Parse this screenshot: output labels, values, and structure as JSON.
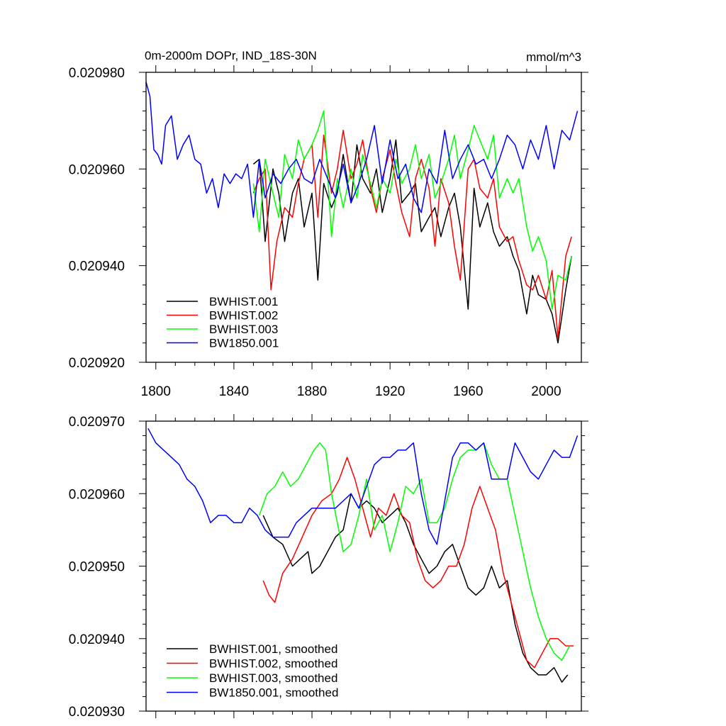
{
  "chart_data": [
    {
      "type": "line",
      "title": "0m-2000m DOPr, IND_18S-30N",
      "units": "mmol/m^3",
      "xlim": [
        1795,
        2018
      ],
      "ylim": [
        0.02092,
        0.02098
      ],
      "x_ticks": [
        1800,
        1840,
        1880,
        1920,
        1960,
        2000
      ],
      "x_tick_labels": [
        "1800",
        "1840",
        "1880",
        "1920",
        "1960",
        "2000"
      ],
      "y_ticks": [
        0.02092,
        0.02094,
        0.02096,
        0.02098
      ],
      "y_tick_labels": [
        "0.020920",
        "0.020940",
        "0.020960",
        "0.020980"
      ],
      "legend_position": "bottom-left",
      "series": [
        {
          "name": "BWHIST.001",
          "color": "#000000",
          "x": [
            1850,
            1853,
            1856,
            1860,
            1863,
            1866,
            1870,
            1873,
            1876,
            1880,
            1883,
            1886,
            1890,
            1893,
            1896,
            1900,
            1903,
            1906,
            1910,
            1913,
            1916,
            1920,
            1923,
            1926,
            1930,
            1933,
            1936,
            1940,
            1943,
            1946,
            1950,
            1953,
            1956,
            1960,
            1963,
            1966,
            1970,
            1973,
            1976,
            1980,
            1983,
            1986,
            1990,
            1993,
            1996,
            2000,
            2003,
            2006,
            2010,
            2013
          ],
          "values": [
            0.020961,
            0.020962,
            0.020945,
            0.02096,
            0.020955,
            0.020945,
            0.020955,
            0.020958,
            0.020948,
            0.020955,
            0.020937,
            0.020957,
            0.020952,
            0.020955,
            0.020963,
            0.020953,
            0.020965,
            0.020958,
            0.020955,
            0.02096,
            0.020951,
            0.020958,
            0.020966,
            0.020953,
            0.020955,
            0.020957,
            0.020947,
            0.02095,
            0.020952,
            0.020946,
            0.020952,
            0.020955,
            0.020948,
            0.020931,
            0.020956,
            0.020948,
            0.020953,
            0.020947,
            0.020944,
            0.020946,
            0.020942,
            0.020939,
            0.02093,
            0.020938,
            0.020934,
            0.020933,
            0.02093,
            0.020924,
            0.020935,
            0.020942
          ]
        },
        {
          "name": "BWHIST.002",
          "color": "#ff0000",
          "x": [
            1850,
            1853,
            1856,
            1859,
            1862,
            1866,
            1870,
            1873,
            1876,
            1880,
            1883,
            1886,
            1890,
            1893,
            1896,
            1900,
            1903,
            1906,
            1910,
            1913,
            1916,
            1920,
            1923,
            1926,
            1930,
            1933,
            1936,
            1940,
            1943,
            1946,
            1950,
            1953,
            1956,
            1960,
            1963,
            1966,
            1970,
            1973,
            1976,
            1980,
            1983,
            1986,
            1990,
            1993,
            1996,
            2000,
            2003,
            2006,
            2010,
            2013
          ],
          "values": [
            0.020955,
            0.020958,
            0.02096,
            0.020935,
            0.020945,
            0.020952,
            0.02095,
            0.020957,
            0.020962,
            0.020965,
            0.02095,
            0.020967,
            0.020955,
            0.02096,
            0.020968,
            0.020958,
            0.020961,
            0.020966,
            0.020956,
            0.020951,
            0.020958,
            0.020964,
            0.020957,
            0.020951,
            0.020946,
            0.020958,
            0.020962,
            0.020956,
            0.020944,
            0.020958,
            0.020953,
            0.020944,
            0.020937,
            0.02096,
            0.020962,
            0.020956,
            0.020954,
            0.020958,
            0.020948,
            0.020945,
            0.020946,
            0.020941,
            0.020936,
            0.020935,
            0.020938,
            0.020933,
            0.020939,
            0.020925,
            0.020942,
            0.020946
          ]
        },
        {
          "name": "BWHIST.003",
          "color": "#00ff00",
          "x": [
            1850,
            1853,
            1856,
            1860,
            1863,
            1866,
            1870,
            1873,
            1876,
            1880,
            1883,
            1886,
            1890,
            1893,
            1896,
            1900,
            1903,
            1906,
            1910,
            1913,
            1916,
            1920,
            1923,
            1926,
            1930,
            1933,
            1936,
            1940,
            1943,
            1946,
            1950,
            1953,
            1956,
            1960,
            1963,
            1966,
            1970,
            1973,
            1976,
            1980,
            1983,
            1986,
            1990,
            1993,
            1996,
            2000,
            2003,
            2006,
            2010,
            2013
          ],
          "values": [
            0.020957,
            0.020947,
            0.020962,
            0.020955,
            0.02095,
            0.020963,
            0.020958,
            0.020966,
            0.020962,
            0.020965,
            0.020968,
            0.020972,
            0.020946,
            0.020958,
            0.020952,
            0.02096,
            0.020954,
            0.020963,
            0.020957,
            0.020952,
            0.020958,
            0.020955,
            0.020962,
            0.020957,
            0.02096,
            0.020965,
            0.020958,
            0.020963,
            0.020954,
            0.020957,
            0.020962,
            0.020967,
            0.020958,
            0.020964,
            0.020969,
            0.020966,
            0.020962,
            0.020967,
            0.020954,
            0.020958,
            0.020955,
            0.020958,
            0.020948,
            0.020943,
            0.020946,
            0.020941,
            0.020931,
            0.020938,
            0.020937,
            0.020942
          ]
        },
        {
          "name": "BW1850.001",
          "color": "#0000ff",
          "x": [
            1795,
            1797,
            1799,
            1801,
            1803,
            1805,
            1808,
            1811,
            1814,
            1817,
            1820,
            1823,
            1826,
            1829,
            1832,
            1835,
            1838,
            1841,
            1844,
            1847,
            1850,
            1853,
            1856,
            1860,
            1864,
            1868,
            1872,
            1876,
            1880,
            1884,
            1888,
            1892,
            1896,
            1900,
            1904,
            1908,
            1912,
            1916,
            1920,
            1924,
            1928,
            1932,
            1936,
            1940,
            1944,
            1948,
            1952,
            1956,
            1960,
            1964,
            1968,
            1972,
            1976,
            1980,
            1984,
            1988,
            1992,
            1996,
            2000,
            2004,
            2008,
            2012,
            2016
          ],
          "values": [
            0.020978,
            0.020975,
            0.020964,
            0.020963,
            0.020961,
            0.020969,
            0.020971,
            0.020962,
            0.020965,
            0.020967,
            0.020962,
            0.020961,
            0.020955,
            0.020958,
            0.020952,
            0.020959,
            0.020957,
            0.020959,
            0.020958,
            0.020961,
            0.02095,
            0.020962,
            0.020954,
            0.020959,
            0.020957,
            0.02096,
            0.020962,
            0.020958,
            0.020957,
            0.020962,
            0.020958,
            0.020954,
            0.020961,
            0.020953,
            0.020957,
            0.020962,
            0.020969,
            0.020957,
            0.020966,
            0.020958,
            0.020961,
            0.020954,
            0.020951,
            0.02096,
            0.020957,
            0.020968,
            0.020958,
            0.020962,
            0.020965,
            0.020961,
            0.020962,
            0.020958,
            0.020962,
            0.020967,
            0.020965,
            0.02096,
            0.020966,
            0.020962,
            0.020969,
            0.02096,
            0.020968,
            0.020966,
            0.020972
          ]
        }
      ]
    },
    {
      "type": "line",
      "title": "",
      "xlim": [
        1795,
        2018
      ],
      "ylim": [
        0.02093,
        0.02097
      ],
      "x_ticks": [
        1800,
        1840,
        1880,
        1920,
        1960,
        2000
      ],
      "y_ticks": [
        0.02093,
        0.02094,
        0.02095,
        0.02096,
        0.02097
      ],
      "y_tick_labels": [
        "0.020930",
        "0.020940",
        "0.020950",
        "0.020960",
        "0.020970"
      ],
      "legend_position": "bottom-left",
      "series": [
        {
          "name": "BWHIST.001, smoothed",
          "color": "#000000",
          "x": [
            1855,
            1860,
            1865,
            1870,
            1874,
            1878,
            1880,
            1884,
            1888,
            1892,
            1896,
            1900,
            1904,
            1908,
            1912,
            1916,
            1920,
            1924,
            1928,
            1932,
            1936,
            1940,
            1944,
            1948,
            1952,
            1956,
            1960,
            1964,
            1968,
            1972,
            1976,
            1980,
            1984,
            1988,
            1992,
            1996,
            2000,
            2004,
            2008,
            2011
          ],
          "values": [
            0.020957,
            0.020954,
            0.020953,
            0.02095,
            0.020951,
            0.020952,
            0.020949,
            0.02095,
            0.020952,
            0.020954,
            0.020955,
            0.02096,
            0.020958,
            0.020959,
            0.020958,
            0.020956,
            0.020957,
            0.020958,
            0.020956,
            0.020953,
            0.020951,
            0.020949,
            0.02095,
            0.020952,
            0.020953,
            0.02095,
            0.020947,
            0.020946,
            0.020947,
            0.02095,
            0.020947,
            0.020948,
            0.020942,
            0.020938,
            0.020936,
            0.020935,
            0.020935,
            0.020936,
            0.020934,
            0.020935
          ]
        },
        {
          "name": "BWHIST.002, smoothed",
          "color": "#ff0000",
          "x": [
            1855,
            1858,
            1861,
            1865,
            1870,
            1875,
            1880,
            1885,
            1890,
            1894,
            1898,
            1902,
            1906,
            1910,
            1914,
            1918,
            1922,
            1926,
            1930,
            1934,
            1938,
            1942,
            1946,
            1950,
            1954,
            1958,
            1962,
            1966,
            1970,
            1974,
            1978,
            1982,
            1986,
            1990,
            1994,
            1998,
            2002,
            2006,
            2010,
            2014
          ],
          "values": [
            0.020948,
            0.020946,
            0.020945,
            0.020949,
            0.020951,
            0.020954,
            0.020957,
            0.020959,
            0.02096,
            0.020962,
            0.020965,
            0.020962,
            0.020958,
            0.020954,
            0.020958,
            0.020957,
            0.02096,
            0.020957,
            0.020956,
            0.020951,
            0.020948,
            0.020947,
            0.020948,
            0.02095,
            0.02095,
            0.020953,
            0.020958,
            0.020961,
            0.020958,
            0.020955,
            0.020949,
            0.020945,
            0.020941,
            0.020937,
            0.020936,
            0.020938,
            0.02094,
            0.02094,
            0.020939,
            0.020939
          ]
        },
        {
          "name": "BWHIST.003, smoothed",
          "color": "#00ff00",
          "x": [
            1853,
            1857,
            1861,
            1865,
            1869,
            1873,
            1877,
            1881,
            1884,
            1887,
            1890,
            1893,
            1896,
            1900,
            1904,
            1908,
            1912,
            1916,
            1920,
            1924,
            1928,
            1932,
            1936,
            1940,
            1944,
            1948,
            1952,
            1956,
            1960,
            1964,
            1968,
            1972,
            1976,
            1980,
            1984,
            1988,
            1992,
            1996,
            2000,
            2004,
            2008,
            2012
          ],
          "values": [
            0.020957,
            0.02096,
            0.020961,
            0.020963,
            0.020961,
            0.020962,
            0.020964,
            0.020966,
            0.020967,
            0.020966,
            0.02096,
            0.020956,
            0.020952,
            0.020953,
            0.020957,
            0.020962,
            0.020955,
            0.020957,
            0.020952,
            0.020956,
            0.020961,
            0.02096,
            0.020962,
            0.020956,
            0.020956,
            0.020958,
            0.020962,
            0.020965,
            0.020966,
            0.020966,
            0.020967,
            0.020964,
            0.020962,
            0.020962,
            0.020957,
            0.020952,
            0.020947,
            0.020943,
            0.02094,
            0.020938,
            0.020937,
            0.020939
          ]
        },
        {
          "name": "BW1850.001, smoothed",
          "color": "#0000ff",
          "x": [
            1796,
            1800,
            1804,
            1808,
            1812,
            1816,
            1820,
            1824,
            1828,
            1832,
            1836,
            1840,
            1844,
            1848,
            1852,
            1856,
            1860,
            1864,
            1868,
            1872,
            1876,
            1880,
            1884,
            1888,
            1892,
            1896,
            1900,
            1904,
            1908,
            1912,
            1916,
            1920,
            1924,
            1928,
            1932,
            1936,
            1940,
            1944,
            1948,
            1952,
            1956,
            1960,
            1964,
            1968,
            1972,
            1976,
            1980,
            1984,
            1988,
            1992,
            1996,
            2000,
            2004,
            2008,
            2012,
            2016
          ],
          "values": [
            0.020969,
            0.020967,
            0.020966,
            0.020965,
            0.020964,
            0.020962,
            0.020961,
            0.020959,
            0.020956,
            0.020957,
            0.020957,
            0.020956,
            0.020956,
            0.020958,
            0.020957,
            0.020955,
            0.020954,
            0.020954,
            0.020954,
            0.020956,
            0.020957,
            0.020958,
            0.020958,
            0.020958,
            0.020958,
            0.020959,
            0.02096,
            0.020958,
            0.020961,
            0.020964,
            0.020965,
            0.020965,
            0.020966,
            0.020966,
            0.020967,
            0.02096,
            0.020955,
            0.020953,
            0.020959,
            0.020965,
            0.020967,
            0.020967,
            0.020966,
            0.020967,
            0.020962,
            0.020962,
            0.020962,
            0.020967,
            0.020965,
            0.020963,
            0.020962,
            0.020964,
            0.020966,
            0.020965,
            0.020965,
            0.020968
          ]
        }
      ]
    }
  ]
}
